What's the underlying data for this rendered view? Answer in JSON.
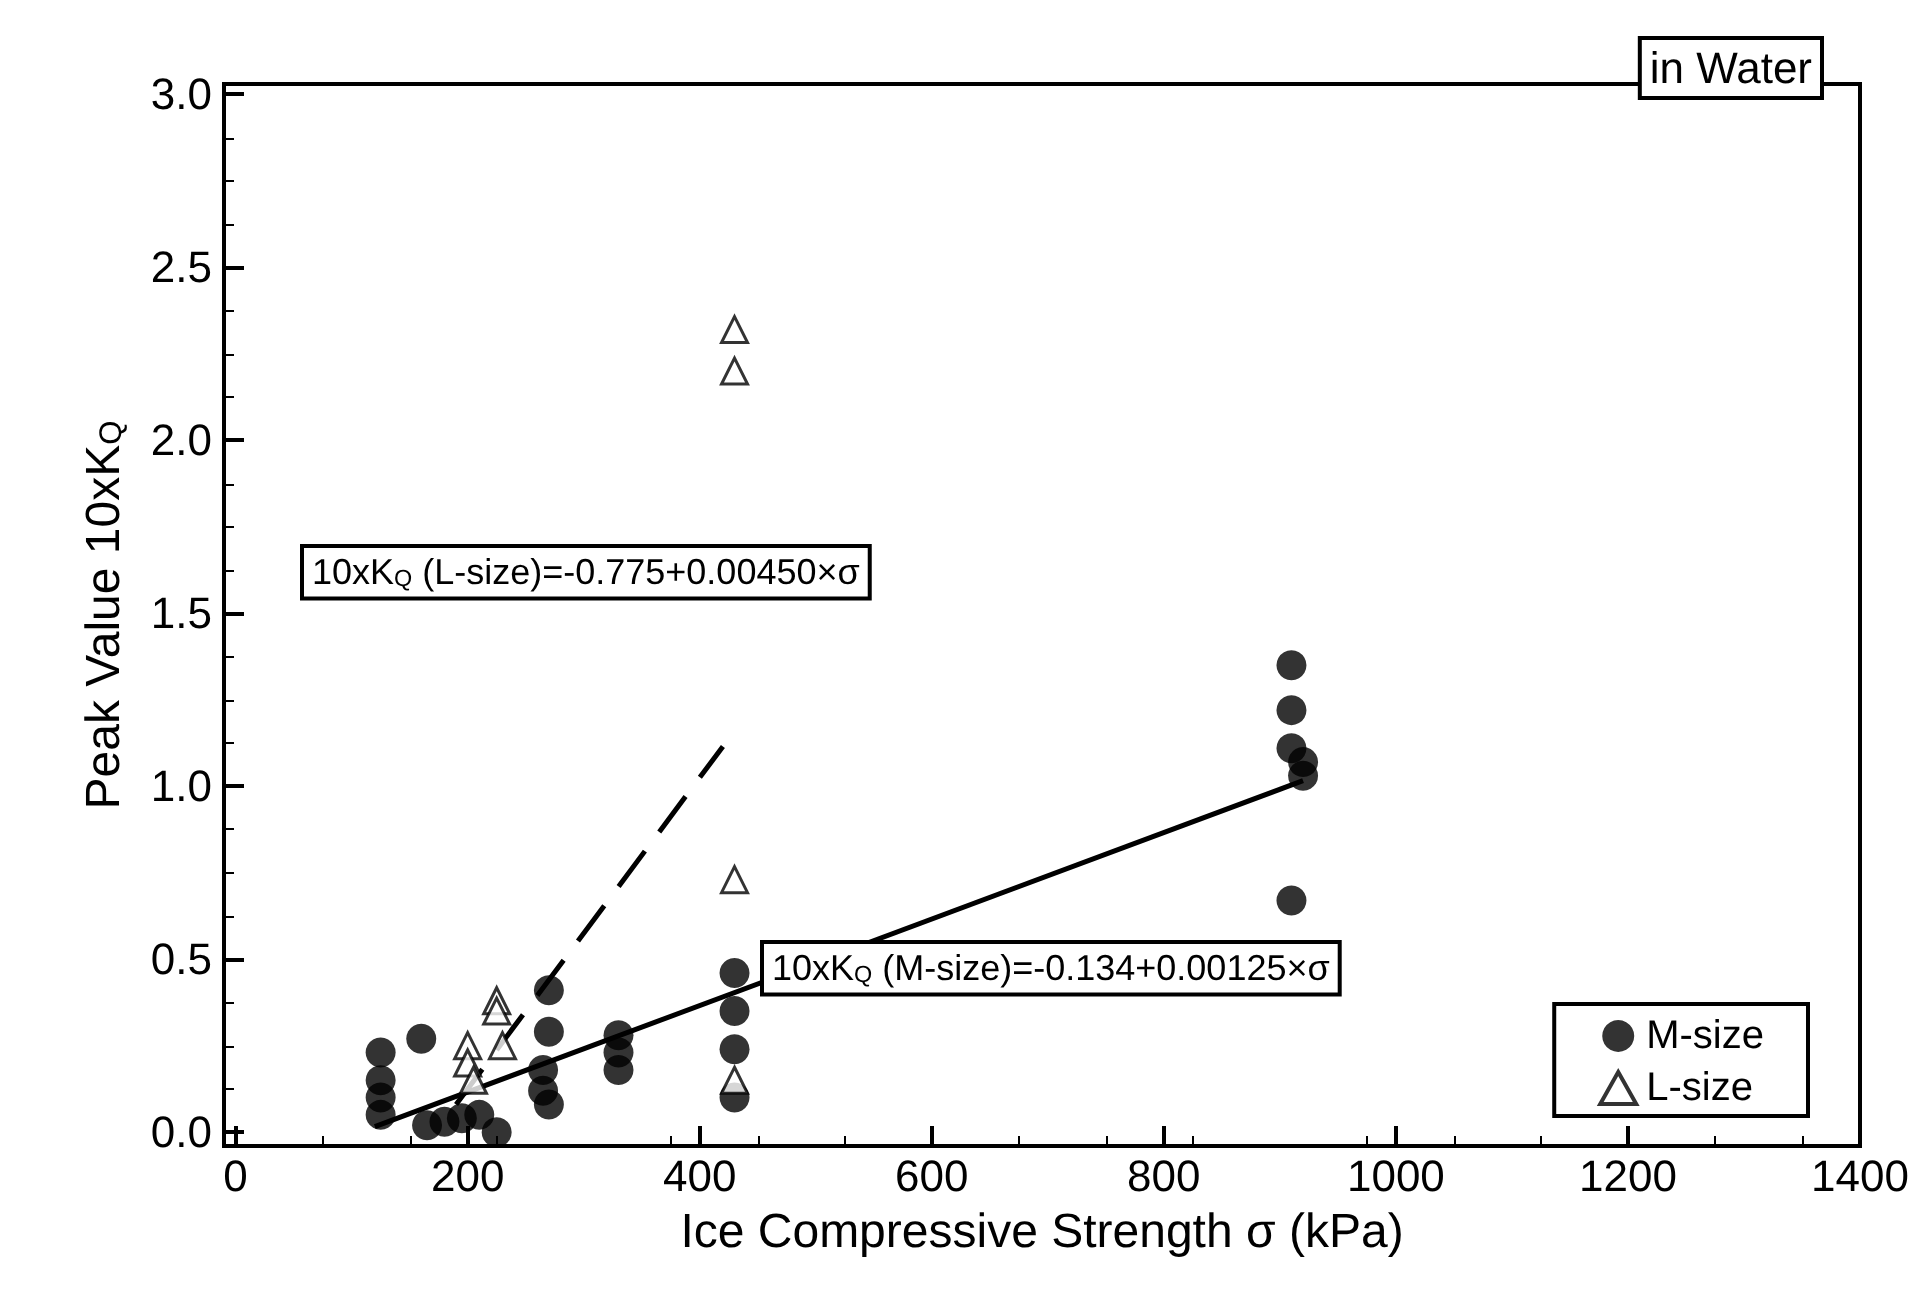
{
  "chart_data": {
    "type": "scatter",
    "xlabel": "Ice Compressive Strength σ (kPa)",
    "ylabel": "Peak Value 10xK$_{Q}$",
    "annotations": [
      "in Water",
      "10xK$_{Q}$ (L-size)=-0.775+0.00450×σ",
      "10xK$_{Q}$ (M-size)=-0.134+0.00125×σ"
    ],
    "xlim": [
      -10,
      1400
    ],
    "ylim": [
      -0.04,
      3.03
    ],
    "xticks": [
      0,
      200,
      400,
      600,
      800,
      1000,
      1200,
      1400
    ],
    "yticks": [
      {
        "value": 0,
        "label": "0.0"
      },
      {
        "value": 0.5,
        "label": "0.5"
      },
      {
        "value": 1,
        "label": "1.0"
      },
      {
        "value": 1.5,
        "label": "1.5"
      },
      {
        "value": 2,
        "label": "2.0"
      },
      {
        "value": 2.5,
        "label": "2.5"
      },
      {
        "value": 3,
        "label": "3.0"
      }
    ],
    "grid": false,
    "legend": "bottom right",
    "series": [
      {
        "name": "M-size",
        "color": "#000000",
        "marker": "circle",
        "x": [
          125,
          125,
          125,
          125,
          160,
          165,
          180,
          195,
          210,
          225,
          270,
          270,
          265,
          265,
          270,
          330,
          330,
          330,
          430,
          430,
          430,
          430,
          910,
          910,
          910,
          910,
          920,
          920
        ],
        "values": [
          0.05,
          0.1,
          0.15,
          0.23,
          0.27,
          0.02,
          0.03,
          0.04,
          0.05,
          0.0,
          0.41,
          0.29,
          0.18,
          0.12,
          0.08,
          0.18,
          0.23,
          0.28,
          0.46,
          0.35,
          0.24,
          0.1,
          1.35,
          1.22,
          1.11,
          0.67,
          1.07,
          1.03
        ]
      },
      {
        "name": "L-size",
        "color": "#000000",
        "marker": "triangle",
        "x": [
          430,
          430,
          430,
          430,
          200,
          200,
          205,
          225,
          225,
          230
        ],
        "values": [
          2.32,
          2.2,
          0.73,
          0.15,
          0.25,
          0.2,
          0.15,
          0.38,
          0.35,
          0.25
        ]
      },
      {
        "type": "line",
        "color": "#000000",
        "marker": "none",
        "line_style": "dashed",
        "x": [
          190,
          420
        ],
        "values": [
          0.08,
          1.115
        ]
      },
      {
        "type": "line",
        "color": "#000000",
        "marker": "none",
        "line_style": "solid",
        "x": [
          120,
          920
        ],
        "values": [
          0.016,
          1.016
        ]
      }
    ]
  }
}
